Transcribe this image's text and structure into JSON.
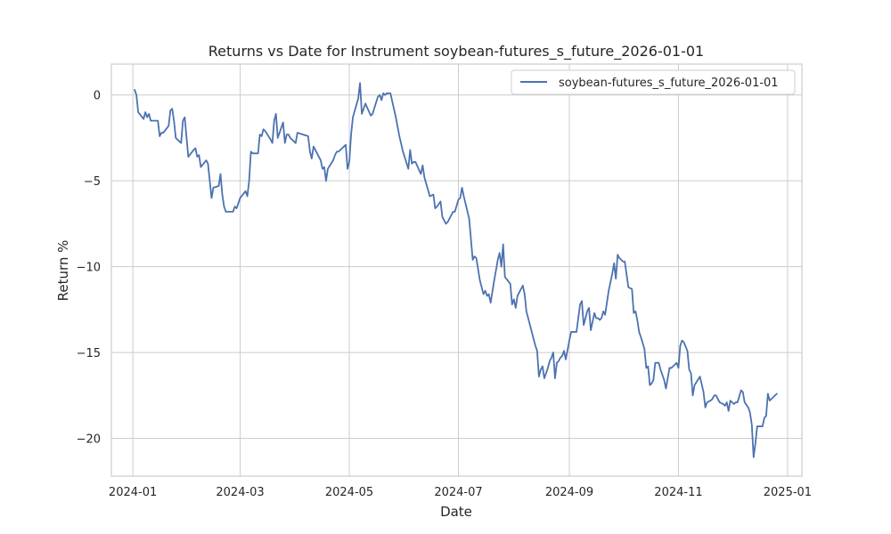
{
  "chart_data": {
    "type": "line",
    "title": "Returns vs Date for Instrument soybean-futures_s_future_2026-01-01",
    "xlabel": "Date",
    "ylabel": "Return %",
    "xlim": [
      "2023-12-20",
      "2025-01-09"
    ],
    "ylim": [
      -22.2,
      1.8
    ],
    "x_ticks": [
      "2024-01",
      "2024-03",
      "2024-05",
      "2024-07",
      "2024-09",
      "2024-11",
      "2025-01"
    ],
    "y_ticks": [
      0,
      -5,
      -10,
      -15,
      -20
    ],
    "grid": true,
    "legend_position": "top-right",
    "series": [
      {
        "name": "soybean-futures_s_future_2026-01-01",
        "color": "#4c72b0",
        "points": [
          [
            "2024-01-02",
            0.3
          ],
          [
            "2024-01-03",
            0.0
          ],
          [
            "2024-01-04",
            -1.0
          ],
          [
            "2024-01-07",
            -1.4
          ],
          [
            "2024-01-08",
            -1.0
          ],
          [
            "2024-01-09",
            -1.3
          ],
          [
            "2024-01-10",
            -1.1
          ],
          [
            "2024-01-11",
            -1.5
          ],
          [
            "2024-01-14",
            -1.5
          ],
          [
            "2024-01-15",
            -1.5
          ],
          [
            "2024-01-16",
            -2.4
          ],
          [
            "2024-01-17",
            -2.2
          ],
          [
            "2024-01-18",
            -2.2
          ],
          [
            "2024-01-21",
            -1.8
          ],
          [
            "2024-01-22",
            -0.9
          ],
          [
            "2024-01-23",
            -0.8
          ],
          [
            "2024-01-24",
            -1.5
          ],
          [
            "2024-01-25",
            -2.5
          ],
          [
            "2024-01-28",
            -2.8
          ],
          [
            "2024-01-29",
            -1.5
          ],
          [
            "2024-01-30",
            -1.3
          ],
          [
            "2024-02-01",
            -3.6
          ],
          [
            "2024-02-04",
            -3.2
          ],
          [
            "2024-02-05",
            -3.1
          ],
          [
            "2024-02-06",
            -3.6
          ],
          [
            "2024-02-07",
            -3.5
          ],
          [
            "2024-02-08",
            -4.2
          ],
          [
            "2024-02-11",
            -3.8
          ],
          [
            "2024-02-12",
            -4.0
          ],
          [
            "2024-02-14",
            -6.0
          ],
          [
            "2024-02-15",
            -5.4
          ],
          [
            "2024-02-18",
            -5.3
          ],
          [
            "2024-02-19",
            -4.6
          ],
          [
            "2024-02-20",
            -5.8
          ],
          [
            "2024-02-21",
            -6.5
          ],
          [
            "2024-02-22",
            -6.8
          ],
          [
            "2024-02-25",
            -6.8
          ],
          [
            "2024-02-26",
            -6.8
          ],
          [
            "2024-02-27",
            -6.5
          ],
          [
            "2024-02-28",
            -6.6
          ],
          [
            "2024-03-01",
            -6.0
          ],
          [
            "2024-03-04",
            -5.6
          ],
          [
            "2024-03-05",
            -5.9
          ],
          [
            "2024-03-06",
            -5.0
          ],
          [
            "2024-03-07",
            -3.3
          ],
          [
            "2024-03-08",
            -3.4
          ],
          [
            "2024-03-11",
            -3.4
          ],
          [
            "2024-03-12",
            -2.3
          ],
          [
            "2024-03-13",
            -2.4
          ],
          [
            "2024-03-14",
            -2.0
          ],
          [
            "2024-03-15",
            -2.1
          ],
          [
            "2024-03-18",
            -2.6
          ],
          [
            "2024-03-19",
            -2.8
          ],
          [
            "2024-03-20",
            -1.5
          ],
          [
            "2024-03-21",
            -1.1
          ],
          [
            "2024-03-22",
            -2.5
          ],
          [
            "2024-03-25",
            -1.6
          ],
          [
            "2024-03-26",
            -2.8
          ],
          [
            "2024-03-27",
            -2.3
          ],
          [
            "2024-03-28",
            -2.3
          ],
          [
            "2024-03-29",
            -2.5
          ],
          [
            "2024-04-01",
            -2.8
          ],
          [
            "2024-04-02",
            -2.2
          ],
          [
            "2024-04-05",
            -2.3
          ],
          [
            "2024-04-08",
            -2.4
          ],
          [
            "2024-04-09",
            -3.3
          ],
          [
            "2024-04-10",
            -3.7
          ],
          [
            "2024-04-11",
            -3.0
          ],
          [
            "2024-04-12",
            -3.2
          ],
          [
            "2024-04-15",
            -3.8
          ],
          [
            "2024-04-16",
            -4.3
          ],
          [
            "2024-04-17",
            -4.2
          ],
          [
            "2024-04-18",
            -5.0
          ],
          [
            "2024-04-19",
            -4.3
          ],
          [
            "2024-04-22",
            -3.8
          ],
          [
            "2024-04-23",
            -3.5
          ],
          [
            "2024-04-24",
            -3.3
          ],
          [
            "2024-04-25",
            -3.3
          ],
          [
            "2024-04-26",
            -3.2
          ],
          [
            "2024-04-29",
            -2.9
          ],
          [
            "2024-04-30",
            -4.3
          ],
          [
            "2024-05-01",
            -3.9
          ],
          [
            "2024-05-02",
            -2.3
          ],
          [
            "2024-05-03",
            -1.3
          ],
          [
            "2024-05-06",
            -0.2
          ],
          [
            "2024-05-07",
            0.7
          ],
          [
            "2024-05-08",
            -1.1
          ],
          [
            "2024-05-09",
            -0.8
          ],
          [
            "2024-05-10",
            -0.5
          ],
          [
            "2024-05-13",
            -1.2
          ],
          [
            "2024-05-14",
            -1.1
          ],
          [
            "2024-05-17",
            -0.1
          ],
          [
            "2024-05-18",
            0.0
          ],
          [
            "2024-05-19",
            -0.3
          ],
          [
            "2024-05-20",
            0.1
          ],
          [
            "2024-05-21",
            0.0
          ],
          [
            "2024-05-22",
            0.1
          ],
          [
            "2024-05-24",
            0.1
          ],
          [
            "2024-05-27",
            -1.3
          ],
          [
            "2024-05-29",
            -2.4
          ],
          [
            "2024-05-31",
            -3.3
          ],
          [
            "2024-06-03",
            -4.3
          ],
          [
            "2024-06-04",
            -3.2
          ],
          [
            "2024-06-05",
            -4.0
          ],
          [
            "2024-06-06",
            -3.9
          ],
          [
            "2024-06-07",
            -3.9
          ],
          [
            "2024-06-10",
            -4.6
          ],
          [
            "2024-06-11",
            -4.1
          ],
          [
            "2024-06-12",
            -4.8
          ],
          [
            "2024-06-15",
            -5.9
          ],
          [
            "2024-06-17",
            -5.8
          ],
          [
            "2024-06-18",
            -6.6
          ],
          [
            "2024-06-19",
            -6.5
          ],
          [
            "2024-06-21",
            -6.2
          ],
          [
            "2024-06-22",
            -7.1
          ],
          [
            "2024-06-24",
            -7.5
          ],
          [
            "2024-06-25",
            -7.4
          ],
          [
            "2024-06-28",
            -6.8
          ],
          [
            "2024-06-29",
            -6.8
          ],
          [
            "2024-07-01",
            -6.1
          ],
          [
            "2024-07-02",
            -6.0
          ],
          [
            "2024-07-03",
            -5.4
          ],
          [
            "2024-07-04",
            -5.9
          ],
          [
            "2024-07-07",
            -7.2
          ],
          [
            "2024-07-09",
            -9.6
          ],
          [
            "2024-07-10",
            -9.4
          ],
          [
            "2024-07-11",
            -9.5
          ],
          [
            "2024-07-13",
            -10.8
          ],
          [
            "2024-07-15",
            -11.6
          ],
          [
            "2024-07-16",
            -11.4
          ],
          [
            "2024-07-17",
            -11.7
          ],
          [
            "2024-07-18",
            -11.6
          ],
          [
            "2024-07-19",
            -12.1
          ],
          [
            "2024-07-21",
            -10.8
          ],
          [
            "2024-07-23",
            -9.6
          ],
          [
            "2024-07-24",
            -9.2
          ],
          [
            "2024-07-25",
            -10.0
          ],
          [
            "2024-07-26",
            -8.7
          ],
          [
            "2024-07-27",
            -10.6
          ],
          [
            "2024-07-30",
            -11.0
          ],
          [
            "2024-07-31",
            -12.2
          ],
          [
            "2024-08-01",
            -11.9
          ],
          [
            "2024-08-02",
            -12.4
          ],
          [
            "2024-08-03",
            -11.7
          ],
          [
            "2024-08-06",
            -11.1
          ],
          [
            "2024-08-07",
            -11.6
          ],
          [
            "2024-08-08",
            -12.6
          ],
          [
            "2024-08-13",
            -14.6
          ],
          [
            "2024-08-14",
            -14.9
          ],
          [
            "2024-08-15",
            -16.4
          ],
          [
            "2024-08-16",
            -16.0
          ],
          [
            "2024-08-17",
            -15.8
          ],
          [
            "2024-08-18",
            -16.5
          ],
          [
            "2024-08-20",
            -15.9
          ],
          [
            "2024-08-21",
            -15.5
          ],
          [
            "2024-08-22",
            -15.3
          ],
          [
            "2024-08-23",
            -15.0
          ],
          [
            "2024-08-24",
            -16.5
          ],
          [
            "2024-08-25",
            -15.6
          ],
          [
            "2024-08-26",
            -15.5
          ],
          [
            "2024-08-27",
            -15.3
          ],
          [
            "2024-08-28",
            -15.2
          ],
          [
            "2024-08-29",
            -14.9
          ],
          [
            "2024-08-30",
            -15.4
          ],
          [
            "2024-09-01",
            -14.3
          ],
          [
            "2024-09-02",
            -13.8
          ],
          [
            "2024-09-05",
            -13.8
          ],
          [
            "2024-09-06",
            -13.0
          ],
          [
            "2024-09-07",
            -12.2
          ],
          [
            "2024-09-08",
            -12.0
          ],
          [
            "2024-09-09",
            -13.4
          ],
          [
            "2024-09-10",
            -13.0
          ],
          [
            "2024-09-11",
            -12.6
          ],
          [
            "2024-09-12",
            -12.4
          ],
          [
            "2024-09-13",
            -13.7
          ],
          [
            "2024-09-14",
            -13.2
          ],
          [
            "2024-09-15",
            -12.7
          ],
          [
            "2024-09-16",
            -13.0
          ],
          [
            "2024-09-17",
            -13.0
          ],
          [
            "2024-09-18",
            -13.1
          ],
          [
            "2024-09-19",
            -13.0
          ],
          [
            "2024-09-20",
            -12.6
          ],
          [
            "2024-09-21",
            -12.8
          ],
          [
            "2024-09-23",
            -11.4
          ],
          [
            "2024-09-25",
            -10.4
          ],
          [
            "2024-09-26",
            -9.8
          ],
          [
            "2024-09-27",
            -10.7
          ],
          [
            "2024-09-28",
            -9.3
          ],
          [
            "2024-09-29",
            -9.5
          ],
          [
            "2024-10-01",
            -9.7
          ],
          [
            "2024-10-02",
            -9.7
          ],
          [
            "2024-10-04",
            -11.2
          ],
          [
            "2024-10-06",
            -11.3
          ],
          [
            "2024-10-07",
            -12.7
          ],
          [
            "2024-10-08",
            -12.6
          ],
          [
            "2024-10-09",
            -13.1
          ],
          [
            "2024-10-10",
            -13.8
          ],
          [
            "2024-10-11",
            -14.1
          ],
          [
            "2024-10-13",
            -14.8
          ],
          [
            "2024-10-14",
            -15.9
          ],
          [
            "2024-10-15",
            -15.8
          ],
          [
            "2024-10-16",
            -16.9
          ],
          [
            "2024-10-17",
            -16.8
          ],
          [
            "2024-10-18",
            -16.6
          ],
          [
            "2024-10-19",
            -15.6
          ],
          [
            "2024-10-21",
            -15.6
          ],
          [
            "2024-10-22",
            -16.0
          ],
          [
            "2024-10-24",
            -16.6
          ],
          [
            "2024-10-25",
            -17.1
          ],
          [
            "2024-10-27",
            -15.9
          ],
          [
            "2024-10-28",
            -15.9
          ],
          [
            "2024-10-29",
            -15.8
          ],
          [
            "2024-10-31",
            -15.6
          ],
          [
            "2024-11-01",
            -15.9
          ],
          [
            "2024-11-02",
            -14.6
          ],
          [
            "2024-11-03",
            -14.3
          ],
          [
            "2024-11-04",
            -14.4
          ],
          [
            "2024-11-06",
            -14.9
          ],
          [
            "2024-11-07",
            -16.0
          ],
          [
            "2024-11-08",
            -16.2
          ],
          [
            "2024-11-09",
            -17.5
          ],
          [
            "2024-11-10",
            -16.9
          ],
          [
            "2024-11-13",
            -16.4
          ],
          [
            "2024-11-15",
            -17.3
          ],
          [
            "2024-11-16",
            -18.2
          ],
          [
            "2024-11-17",
            -17.9
          ],
          [
            "2024-11-19",
            -17.8
          ],
          [
            "2024-11-20",
            -17.7
          ],
          [
            "2024-11-21",
            -17.5
          ],
          [
            "2024-11-22",
            -17.5
          ],
          [
            "2024-11-24",
            -17.9
          ],
          [
            "2024-11-26",
            -18.0
          ],
          [
            "2024-11-27",
            -18.1
          ],
          [
            "2024-11-28",
            -17.9
          ],
          [
            "2024-11-29",
            -18.4
          ],
          [
            "2024-11-30",
            -17.8
          ],
          [
            "2024-12-02",
            -18.0
          ],
          [
            "2024-12-03",
            -17.9
          ],
          [
            "2024-12-04",
            -17.9
          ],
          [
            "2024-12-06",
            -17.2
          ],
          [
            "2024-12-07",
            -17.3
          ],
          [
            "2024-12-08",
            -17.9
          ],
          [
            "2024-12-10",
            -18.2
          ],
          [
            "2024-12-11",
            -18.5
          ],
          [
            "2024-12-12",
            -19.2
          ],
          [
            "2024-12-13",
            -21.1
          ],
          [
            "2024-12-14",
            -20.3
          ],
          [
            "2024-12-15",
            -19.3
          ],
          [
            "2024-12-18",
            -19.3
          ],
          [
            "2024-12-19",
            -18.8
          ],
          [
            "2024-12-20",
            -18.7
          ],
          [
            "2024-12-21",
            -17.4
          ],
          [
            "2024-12-22",
            -17.8
          ],
          [
            "2024-12-24",
            -17.6
          ],
          [
            "2024-12-26",
            -17.4
          ]
        ]
      }
    ]
  }
}
